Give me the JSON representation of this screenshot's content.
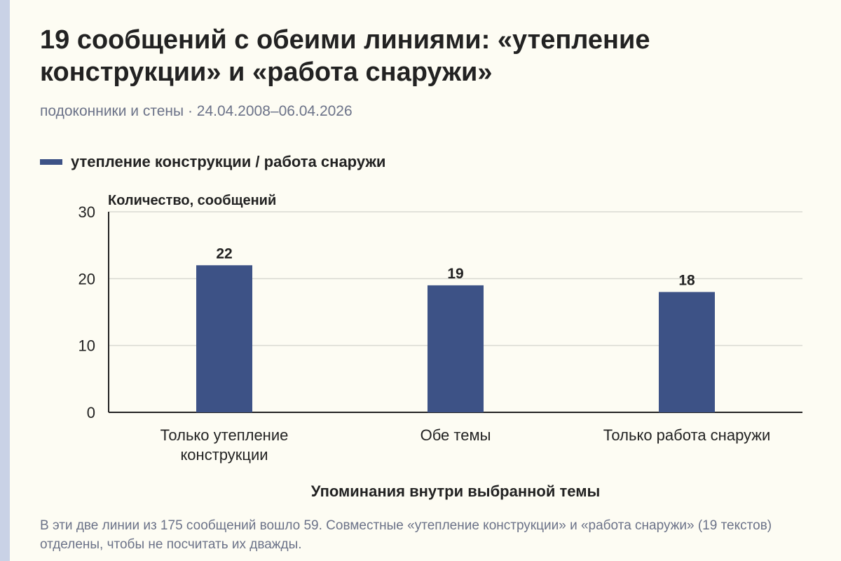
{
  "title": "19 сообщений с обеими линиями: «утепление конструкции» и «работа снаружи»",
  "subtitle": "подоконники и стены · 24.04.2008–06.04.2026",
  "colors": {
    "bar": "#3d5286",
    "grid": "#d9d9d2",
    "axis": "#222222",
    "subtitle": "#6b7288"
  },
  "chart_data": {
    "type": "bar",
    "categories": [
      "Только утепление конструкции",
      "Обе темы",
      "Только работа снаружи"
    ],
    "series": [
      {
        "name": "утепление конструкции / работа снаружи",
        "values": [
          22,
          19,
          18
        ]
      }
    ],
    "data_labels": [
      "22",
      "19",
      "18"
    ],
    "ylabel": "Количество, сообщений",
    "xlabel": "Упоминания внутри выбранной темы",
    "ylim": [
      0,
      30
    ],
    "yticks": [
      0,
      10,
      20,
      30
    ],
    "grid": true,
    "legend_position": "top-left"
  },
  "footnote": "В эти две линии из 175 сообщений вошло 59. Совместные «утепление конструкции» и «работа снаружи» (19 текстов) отделены, чтобы не посчитать их дважды."
}
